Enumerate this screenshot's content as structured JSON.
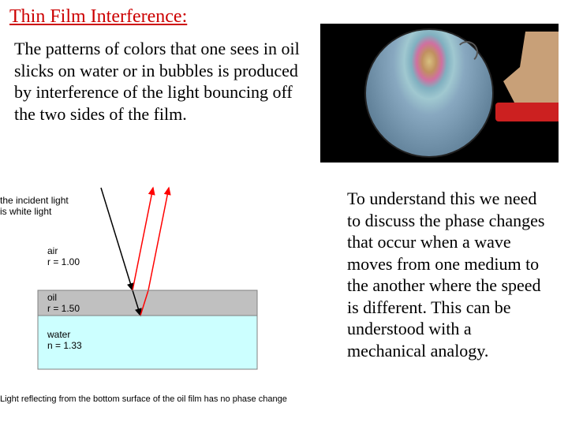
{
  "title": "Thin Film Interference:",
  "intro_text": "The patterns of colors that one sees in oil slicks on water or in bubbles is produced by interference of the light bouncing off the two sides of the film.",
  "second_text": "To understand this we need to discuss the phase changes that occur when a wave moves from one medium to the another where the speed is different. This can be understood with a mechanical analogy.",
  "diagram": {
    "incident_label": "the incident light\nis white light",
    "air": {
      "label": "air",
      "index": "r = 1.00"
    },
    "oil": {
      "label": "oil",
      "index": "r = 1.50",
      "color": "#c0c0c0"
    },
    "water": {
      "label": "water",
      "index": "n = 1.33",
      "color": "#ccffff"
    },
    "caption": "Light reflecting from the bottom surface of the oil film has no phase change",
    "ray_colors": {
      "incident": "#000000",
      "reflected": "#ff0000"
    }
  },
  "photo": {
    "background": "#000000",
    "handle_color": "#cc2020",
    "hand_color": "#c8a078"
  }
}
